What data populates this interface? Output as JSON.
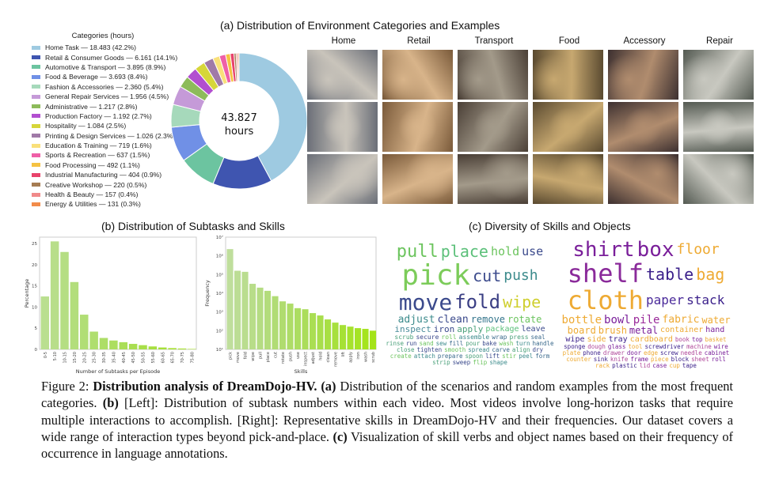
{
  "panel_a": {
    "title": "(a) Distribution of Environment Categories and Examples",
    "legend_title": "Categories (hours)",
    "center_value": "43.827",
    "center_unit": "hours",
    "categories": [
      {
        "label": "Home Task — 18.483  (42.2%)",
        "hours": 18.483,
        "pct": 42.2,
        "color": "#9ecae1"
      },
      {
        "label": "Retail & Consumer Goods — 6.161  (14.1%)",
        "hours": 6.161,
        "pct": 14.1,
        "color": "#3f55b0"
      },
      {
        "label": "Automotive & Transport — 3.895  (8.9%)",
        "hours": 3.895,
        "pct": 8.9,
        "color": "#6cc4a0"
      },
      {
        "label": "Food & Beverage — 3.693  (8.4%)",
        "hours": 3.693,
        "pct": 8.4,
        "color": "#7090e6"
      },
      {
        "label": "Fashion & Accessories — 2.360  (5.4%)",
        "hours": 2.36,
        "pct": 5.4,
        "color": "#a6d9bb"
      },
      {
        "label": "General Repair Services — 1.956  (4.5%)",
        "hours": 1.956,
        "pct": 4.5,
        "color": "#c59ad8"
      },
      {
        "label": "Administrative — 1.217  (2.8%)",
        "hours": 1.217,
        "pct": 2.8,
        "color": "#8dbb5a"
      },
      {
        "label": "Production Factory — 1.192  (2.7%)",
        "hours": 1.192,
        "pct": 2.7,
        "color": "#b24fd0"
      },
      {
        "label": "Hospitality — 1.084  (2.5%)",
        "hours": 1.084,
        "pct": 2.5,
        "color": "#d6d63a"
      },
      {
        "label": "Printing & Design Services — 1.026  (2.3%)",
        "hours": 1.026,
        "pct": 2.3,
        "color": "#a07aa8"
      },
      {
        "label": "Education & Training — 719  (1.6%)",
        "hours": 719,
        "pct": 1.6,
        "color": "#f9e07a"
      },
      {
        "label": "Sports & Recreation — 637  (1.5%)",
        "hours": 637,
        "pct": 1.5,
        "color": "#ef5fa7"
      },
      {
        "label": "Food Processing — 492  (1.1%)",
        "hours": 492,
        "pct": 1.1,
        "color": "#f5c242"
      },
      {
        "label": "Industrial Manufacturing — 404  (0.9%)",
        "hours": 404,
        "pct": 0.9,
        "color": "#e8436b"
      },
      {
        "label": "Creative Workshop — 220  (0.5%)",
        "hours": 220,
        "pct": 0.5,
        "color": "#a67c52"
      },
      {
        "label": "Health & Beauty — 157  (0.4%)",
        "hours": 157,
        "pct": 0.4,
        "color": "#f08a8a"
      },
      {
        "label": "Energy & Utilities — 131  (0.3%)",
        "hours": 131,
        "pct": 0.3,
        "color": "#f28c4a"
      }
    ],
    "example_columns": [
      "Home",
      "Retail",
      "Transport",
      "Food",
      "Accessory",
      "Repair"
    ]
  },
  "panel_b": {
    "title": "(b) Distribution of Subtasks and Skills"
  },
  "panel_c": {
    "title": "(c) Diversity of Skills and Objects",
    "skill_words": [
      "pick",
      "move",
      "fold",
      "wipe",
      "pull",
      "place",
      "hold",
      "use",
      "adjust",
      "clean",
      "remove",
      "scrub",
      "secure",
      "roll",
      "assemble",
      "wrap",
      "press",
      "rotate",
      "inspect",
      "iron",
      "cut",
      "push",
      "apply",
      "package",
      "leave",
      "seal",
      "rinse",
      "run",
      "sand",
      "sew",
      "fill",
      "pour",
      "bake",
      "wash",
      "turn",
      "handle",
      "close",
      "tighten",
      "smooth",
      "spread",
      "carve",
      "align",
      "dry",
      "create",
      "attach",
      "prepare",
      "spoon",
      "lift",
      "stir",
      "peel",
      "form",
      "strip",
      "sweep",
      "flip",
      "shape"
    ],
    "object_words": [
      "shirt",
      "box",
      "shelf",
      "cloth",
      "bag",
      "table",
      "paper",
      "stack",
      "floor",
      "bottle",
      "bowl",
      "pile",
      "water",
      "fabric",
      "board",
      "hand",
      "container",
      "brush",
      "metal",
      "wipe",
      "side",
      "tray",
      "cardboard",
      "book",
      "top",
      "basket",
      "sponge",
      "dough",
      "glass",
      "tool",
      "screwdriver",
      "machine",
      "wire",
      "plate",
      "phone",
      "drawer",
      "door",
      "edge",
      "screw",
      "needle",
      "cabinet",
      "counter",
      "sink",
      "knife",
      "frame",
      "piece",
      "block",
      "sheet",
      "roll",
      "rack",
      "plastic",
      "lid",
      "case",
      "cup",
      "tape"
    ]
  },
  "chart_data": [
    {
      "type": "pie",
      "variant": "donut",
      "title": "Categories (hours)",
      "categories": [
        "Home Task",
        "Retail & Consumer Goods",
        "Automotive & Transport",
        "Food & Beverage",
        "Fashion & Accessories",
        "General Repair Services",
        "Administrative",
        "Production Factory",
        "Hospitality",
        "Printing & Design Services",
        "Education & Training",
        "Sports & Recreation",
        "Food Processing",
        "Industrial Manufacturing",
        "Creative Workshop",
        "Health & Beauty",
        "Energy & Utilities"
      ],
      "values": [
        42.2,
        14.1,
        8.9,
        8.4,
        5.4,
        4.5,
        2.8,
        2.7,
        2.5,
        2.3,
        1.6,
        1.5,
        1.1,
        0.9,
        0.5,
        0.4,
        0.3
      ],
      "legend": "left"
    },
    {
      "type": "bar",
      "categories": [
        "0-5",
        "5-10",
        "10-15",
        "15-20",
        "20-25",
        "25-30",
        "30-35",
        "35-40",
        "40-45",
        "45-50",
        "50-55",
        "55-60",
        "60-65",
        "65-70",
        "70-75",
        "75-80"
      ],
      "values": [
        12.5,
        25.5,
        23.0,
        15.9,
        8.2,
        4.2,
        2.7,
        2.1,
        1.7,
        1.3,
        1.0,
        0.7,
        0.45,
        0.3,
        0.2,
        0.1
      ],
      "xlabel": "Number of Subtasks per Episode",
      "ylabel": "Percentage",
      "ylim": [
        0,
        26.5
      ],
      "yticks": [
        0,
        5,
        10,
        15,
        20,
        25
      ],
      "color": "#a3d977"
    },
    {
      "type": "bar",
      "categories": [
        "pick",
        "move",
        "fold",
        "wipe",
        "pull",
        "place",
        "cut",
        "rotate",
        "push",
        "use",
        "inspect",
        "adjust",
        "hold",
        "clean",
        "remove",
        "lift",
        "apply",
        "iron",
        "wash",
        "scrub"
      ],
      "values": [
        2300000,
        160000,
        140000,
        32000,
        20000,
        13500,
        7000,
        3700,
        2800,
        1600,
        1400,
        870,
        650,
        400,
        270,
        200,
        165,
        137,
        125,
        100
      ],
      "xlabel": "Skills",
      "ylabel": "Frequency",
      "yscale": "log",
      "ylim": [
        10,
        10000000
      ],
      "yticks": [
        "10¹",
        "10²",
        "10³",
        "10⁴",
        "10⁵",
        "10⁶",
        "10⁷"
      ],
      "color": "#8cc84b"
    }
  ],
  "caption": {
    "fig": "Figure 2: ",
    "bold_title": "Distribution analysis of DreamDojo-HV.",
    "a_tag": " (a)",
    "a_text": " Distribution of the scenarios and random examples from the most frequent categories. ",
    "b_tag": "(b)",
    "b_text": " [Left]: Distribution of subtask numbers within each video. Most videos involve long-horizon tasks that require multiple interactions to accomplish. [Right]: Representative skills in DreamDojo-HV and their frequencies. Our dataset covers a wide range of interaction types beyond pick-and-place. ",
    "c_tag": "(c)",
    "c_text": " Visualization of skill verbs and object names based on their frequency of occurrence in language annotations."
  }
}
